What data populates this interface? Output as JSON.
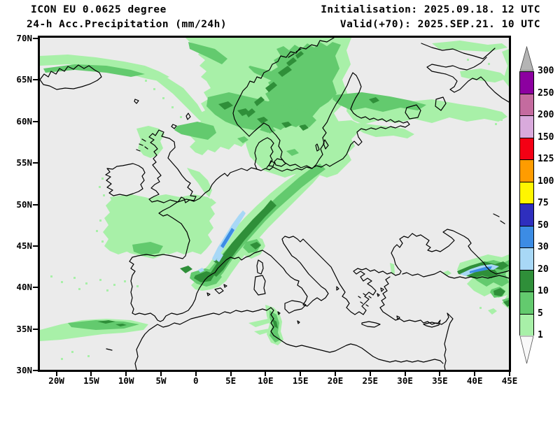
{
  "header": {
    "model_line": "ICON EU 0.0625 degree",
    "product_line": "24-h Acc.Precipitation (mm/24h)",
    "init_line": "Initialisation: 2025.09.18. 12 UTC",
    "valid_line": "Valid(+70): 2025.SEP.21. 10 UTC"
  },
  "map": {
    "background": "#ebebeb",
    "coastline_color": "#000000",
    "lat_ticks": [
      {
        "label": "70N",
        "value": 70
      },
      {
        "label": "65N",
        "value": 65
      },
      {
        "label": "60N",
        "value": 60
      },
      {
        "label": "55N",
        "value": 55
      },
      {
        "label": "50N",
        "value": 50
      },
      {
        "label": "45N",
        "value": 45
      },
      {
        "label": "40N",
        "value": 40
      },
      {
        "label": "35N",
        "value": 35
      },
      {
        "label": "30N",
        "value": 30
      }
    ],
    "lon_ticks": [
      {
        "label": "20W",
        "value": -20
      },
      {
        "label": "15W",
        "value": -15
      },
      {
        "label": "10W",
        "value": -10
      },
      {
        "label": "5W",
        "value": -5
      },
      {
        "label": "0",
        "value": 0
      },
      {
        "label": "5E",
        "value": 5
      },
      {
        "label": "10E",
        "value": 10
      },
      {
        "label": "15E",
        "value": 15
      },
      {
        "label": "20E",
        "value": 20
      },
      {
        "label": "25E",
        "value": 25
      },
      {
        "label": "30E",
        "value": 30
      },
      {
        "label": "35E",
        "value": 35
      },
      {
        "label": "40E",
        "value": 40
      },
      {
        "label": "45E",
        "value": 45
      }
    ]
  },
  "colorbar": {
    "unit": "mm/24h",
    "values": [
      300,
      250,
      200,
      150,
      125,
      100,
      75,
      50,
      30,
      20,
      10,
      5,
      1
    ],
    "band_colors": [
      "#8c00a0",
      "#c46b9f",
      "#d9aadc",
      "#f40014",
      "#ff9c00",
      "#fff600",
      "#2e2ebe",
      "#3c8ce4",
      "#a8d8f6",
      "#2f8f39",
      "#63ca6e",
      "#a8f0a8"
    ],
    "arrow_top_color": "#b4b4b4",
    "arrow_bottom_color": "#f8f8f8"
  },
  "precip_colors": {
    "light_green": "#a8f0a8",
    "medium_green": "#63ca6e",
    "dark_green": "#2f8f39",
    "light_blue": "#a8d8f6",
    "medium_blue": "#3c8ce4"
  }
}
